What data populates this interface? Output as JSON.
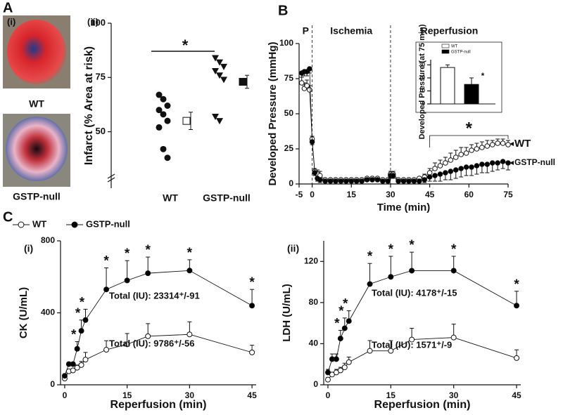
{
  "panel_labels": [
    "A",
    "B",
    "C"
  ],
  "images": {
    "label": "(i)",
    "captions": [
      "WT",
      "GSTP-null"
    ]
  },
  "chart_data": [
    {
      "type": "dot",
      "label": "(ii)",
      "categories": [
        "WT",
        "GSTP-null"
      ],
      "points": [
        [
          67,
          65,
          62,
          60,
          58,
          55,
          52,
          42,
          38
        ],
        [
          84,
          82,
          80,
          78,
          76,
          74,
          57,
          55
        ]
      ],
      "means": [
        55,
        73
      ],
      "errors": [
        4,
        3
      ],
      "ylim": [
        24,
        100
      ],
      "yticks": [
        50,
        75,
        100
      ],
      "y_label": "Infarct (% Area at risk)",
      "annotation": "*"
    },
    {
      "type": "line",
      "x_label": "Time (min)",
      "y_label": "Developed Pressure (mmHg)",
      "phases": [
        "P",
        "Ischemia",
        "Reperfusion"
      ],
      "phase_bounds": [
        0,
        30
      ],
      "annotation": "*",
      "annotation_range": [
        45,
        75
      ],
      "x": [
        -4,
        -3,
        -2,
        -1,
        0,
        1,
        2,
        3,
        5,
        7,
        9,
        11,
        13,
        15,
        17,
        19,
        21,
        23,
        25,
        27,
        29,
        30,
        31,
        33,
        35,
        37,
        39,
        41,
        43,
        45,
        47,
        49,
        51,
        53,
        55,
        57,
        59,
        61,
        63,
        65,
        67,
        69,
        71,
        73,
        75
      ],
      "series": [
        {
          "name": "WT",
          "color": "#ffffff",
          "values": [
            72,
            68,
            70,
            67,
            32,
            9,
            7,
            6,
            3,
            3,
            3,
            3,
            3,
            3,
            3,
            3,
            4,
            4,
            4,
            3,
            3,
            7,
            7,
            3,
            3,
            3,
            3,
            4,
            5,
            8,
            11,
            13,
            15,
            17,
            19,
            21,
            22,
            24,
            25,
            26,
            27,
            28,
            29,
            29,
            28
          ],
          "errors": [
            4,
            4,
            4,
            3,
            2,
            2,
            3,
            3,
            1,
            1,
            1,
            1,
            1,
            1,
            1,
            1,
            1,
            1,
            1,
            1,
            1,
            2,
            2,
            1,
            1,
            1,
            1,
            1,
            2,
            3,
            4,
            4,
            4,
            5,
            5,
            5,
            4,
            4,
            4,
            4,
            4,
            3,
            3,
            3,
            3
          ]
        },
        {
          "name": "GSTP-null",
          "color": "#000000",
          "values": [
            79,
            80,
            80,
            82,
            30,
            8,
            4,
            3,
            2,
            2,
            2,
            2,
            2,
            2,
            2,
            2,
            3,
            3,
            3,
            2,
            2,
            6,
            6,
            2,
            2,
            2,
            2,
            2,
            3,
            5,
            6,
            7,
            8,
            9,
            10,
            11,
            12,
            12,
            13,
            14,
            14,
            15,
            15,
            16,
            15
          ],
          "errors": [
            3,
            3,
            3,
            3,
            2,
            2,
            2,
            2,
            1,
            1,
            1,
            1,
            1,
            1,
            1,
            1,
            1,
            1,
            1,
            1,
            1,
            2,
            2,
            1,
            1,
            1,
            1,
            1,
            2,
            3,
            4,
            5,
            5,
            6,
            6,
            6,
            6,
            6,
            6,
            6,
            6,
            6,
            5,
            5,
            5
          ]
        }
      ],
      "xlim": [
        -5,
        75
      ],
      "xticks": [
        -5,
        0,
        15,
        30,
        45,
        60,
        75
      ],
      "ylim": [
        0,
        100
      ],
      "yticks": [
        0,
        25,
        50,
        75,
        100
      ]
    },
    {
      "type": "bar",
      "y_label": "Developed Pressure (at 75 min)",
      "categories": [
        "WT",
        "GSTP-null"
      ],
      "values": [
        28,
        15
      ],
      "errors": [
        2,
        5
      ],
      "colors": [
        "#ffffff",
        "#000000"
      ],
      "ylim": [
        0,
        34
      ],
      "yticks": [
        0,
        10,
        20,
        30
      ],
      "annotation": "*"
    },
    {
      "type": "line",
      "label": "(i)",
      "x_label": "Reperfusion (min)",
      "y_label": "CK (U/mL)",
      "annotation": "*",
      "star_x": [
        3,
        4,
        5,
        10,
        15,
        20,
        30,
        45
      ],
      "x": [
        0,
        1,
        2,
        3,
        4,
        5,
        10,
        15,
        20,
        30,
        45
      ],
      "series": [
        {
          "name": "WT",
          "color": "#ffffff",
          "values": [
            35,
            75,
            80,
            95,
            110,
            140,
            195,
            225,
            270,
            280,
            180
          ],
          "errors": [
            10,
            10,
            10,
            15,
            20,
            40,
            50,
            60,
            70,
            70,
            40
          ],
          "total": "Total (IU): 9786⁺/-56"
        },
        {
          "name": "GSTP-null",
          "color": "#000000",
          "values": [
            50,
            115,
            115,
            200,
            300,
            360,
            530,
            580,
            620,
            635,
            440
          ],
          "errors": [
            10,
            10,
            10,
            40,
            60,
            60,
            120,
            110,
            90,
            60,
            90
          ],
          "total": "Total (IU): 23314⁺/-91"
        }
      ],
      "xlim": [
        -1,
        46
      ],
      "xticks": [
        0,
        15,
        30,
        45
      ],
      "ylim": [
        0,
        800
      ],
      "yticks": [
        0,
        400,
        800
      ]
    },
    {
      "type": "line",
      "label": "(ii)",
      "x_label": "Reperfusion (min)",
      "y_label": "LDH (U/mL)",
      "annotation": "*",
      "star_x": [
        3,
        4,
        5,
        10,
        15,
        20,
        30,
        45
      ],
      "x": [
        0,
        1,
        2,
        3,
        4,
        5,
        10,
        15,
        20,
        30,
        45
      ],
      "series": [
        {
          "name": "WT",
          "color": "#ffffff",
          "values": [
            5,
            10,
            12,
            14,
            17,
            22,
            33,
            33,
            44,
            46,
            26
          ],
          "errors": [
            2,
            2,
            3,
            3,
            4,
            5,
            10,
            10,
            11,
            13,
            8
          ],
          "total": "Total (IU): 1571⁺/-9"
        },
        {
          "name": "GSTP-null",
          "color": "#000000",
          "values": [
            12,
            25,
            25,
            45,
            55,
            62,
            98,
            105,
            111,
            111,
            77
          ],
          "errors": [
            3,
            5,
            5,
            8,
            10,
            10,
            20,
            20,
            18,
            14,
            14
          ],
          "total": "Total (IU): 4178⁺/-15"
        }
      ],
      "xlim": [
        -1,
        46
      ],
      "xticks": [
        0,
        15,
        30,
        45
      ],
      "ylim": [
        0,
        140
      ],
      "yticks": [
        0,
        40,
        80,
        120
      ]
    }
  ]
}
